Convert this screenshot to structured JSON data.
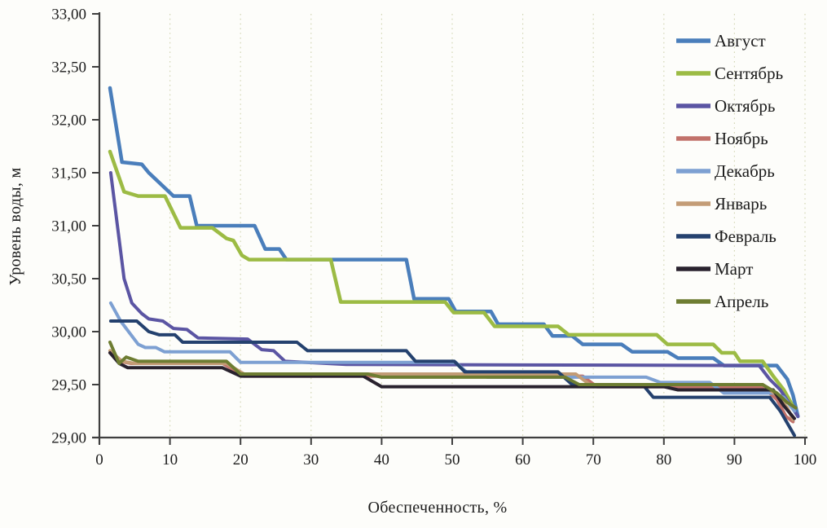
{
  "figure": {
    "background": "#fdfdfa",
    "axis_color": "#3f3f3f",
    "tick_label_color": "#1c1c1c",
    "grid_color": "#cfd2ae"
  },
  "chart_data": {
    "type": "line",
    "title": "",
    "xlabel": "Обеспеченность, %",
    "ylabel": "Уровень воды, м",
    "xlim": [
      0,
      100
    ],
    "ylim": [
      29.0,
      33.0
    ],
    "grid": "vertical-dotted",
    "legend_position": "top-right",
    "x_ticks": [
      {
        "value": 0,
        "label": "0"
      },
      {
        "value": 10,
        "label": "10"
      },
      {
        "value": 20,
        "label": "20"
      },
      {
        "value": 30,
        "label": "30"
      },
      {
        "value": 40,
        "label": "40"
      },
      {
        "value": 50,
        "label": "50"
      },
      {
        "value": 60,
        "label": "60"
      },
      {
        "value": 70,
        "label": "70"
      },
      {
        "value": 80,
        "label": "80"
      },
      {
        "value": 90,
        "label": "90"
      },
      {
        "value": 100,
        "label": "100"
      }
    ],
    "y_ticks": [
      {
        "value": 33.0,
        "label": "33,00"
      },
      {
        "value": 32.5,
        "label": "32,50"
      },
      {
        "value": 32.0,
        "label": "32,00"
      },
      {
        "value": 31.5,
        "label": "31,50"
      },
      {
        "value": 31.0,
        "label": "31,00"
      },
      {
        "value": 30.5,
        "label": "30,50"
      },
      {
        "value": 30.0,
        "label": "30,00"
      },
      {
        "value": 29.5,
        "label": "29,50"
      },
      {
        "value": 29.0,
        "label": "29,00"
      }
    ],
    "series": [
      {
        "name": "Август",
        "slug": "august",
        "color": "#4a7ebb",
        "width": 4.5,
        "points": [
          [
            1.5,
            32.3
          ],
          [
            3.2,
            31.6
          ],
          [
            6.0,
            31.58
          ],
          [
            7.0,
            31.5
          ],
          [
            10.5,
            31.28
          ],
          [
            12.8,
            31.28
          ],
          [
            13.8,
            31.0
          ],
          [
            22.0,
            31.0
          ],
          [
            23.5,
            30.78
          ],
          [
            25.5,
            30.78
          ],
          [
            26.5,
            30.68
          ],
          [
            43.5,
            30.68
          ],
          [
            44.6,
            30.31
          ],
          [
            49.5,
            30.31
          ],
          [
            50.5,
            30.19
          ],
          [
            55.5,
            30.19
          ],
          [
            56.5,
            30.07
          ],
          [
            63.0,
            30.07
          ],
          [
            64.2,
            29.96
          ],
          [
            67.0,
            29.96
          ],
          [
            68.5,
            29.88
          ],
          [
            74.0,
            29.88
          ],
          [
            75.5,
            29.81
          ],
          [
            80.5,
            29.81
          ],
          [
            82.0,
            29.75
          ],
          [
            87.0,
            29.75
          ],
          [
            88.5,
            29.68
          ],
          [
            96.0,
            29.68
          ],
          [
            97.5,
            29.55
          ],
          [
            98.3,
            29.4
          ],
          [
            99.0,
            29.2
          ]
        ]
      },
      {
        "name": "Сентябрь",
        "slug": "september",
        "color": "#9cbb44",
        "width": 4.5,
        "points": [
          [
            1.5,
            31.7
          ],
          [
            3.5,
            31.32
          ],
          [
            5.5,
            31.28
          ],
          [
            9.3,
            31.28
          ],
          [
            11.5,
            30.98
          ],
          [
            16.0,
            30.98
          ],
          [
            18.0,
            30.88
          ],
          [
            19.0,
            30.86
          ],
          [
            20.2,
            30.72
          ],
          [
            21.2,
            30.68
          ],
          [
            32.8,
            30.68
          ],
          [
            34.2,
            30.28
          ],
          [
            49.0,
            30.28
          ],
          [
            50.2,
            30.18
          ],
          [
            54.5,
            30.18
          ],
          [
            56.0,
            30.05
          ],
          [
            65.0,
            30.05
          ],
          [
            66.5,
            29.97
          ],
          [
            79.0,
            29.97
          ],
          [
            80.5,
            29.88
          ],
          [
            87.0,
            29.88
          ],
          [
            88.2,
            29.8
          ],
          [
            90.0,
            29.8
          ],
          [
            90.8,
            29.72
          ],
          [
            94.0,
            29.72
          ],
          [
            95.5,
            29.58
          ],
          [
            97.0,
            29.45
          ],
          [
            98.5,
            29.27
          ]
        ]
      },
      {
        "name": "Октябрь",
        "slug": "october",
        "color": "#5b55a3",
        "width": 4,
        "points": [
          [
            1.6,
            31.5
          ],
          [
            3.5,
            30.5
          ],
          [
            4.6,
            30.27
          ],
          [
            6.0,
            30.17
          ],
          [
            7.0,
            30.12
          ],
          [
            9.0,
            30.1
          ],
          [
            10.5,
            30.03
          ],
          [
            12.4,
            30.02
          ],
          [
            14.0,
            29.94
          ],
          [
            21.0,
            29.93
          ],
          [
            23.0,
            29.83
          ],
          [
            24.7,
            29.82
          ],
          [
            26.3,
            29.72
          ],
          [
            35.0,
            29.69
          ],
          [
            93.5,
            29.68
          ],
          [
            95.0,
            29.55
          ],
          [
            96.5,
            29.45
          ],
          [
            97.5,
            29.35
          ],
          [
            99.0,
            29.2
          ]
        ]
      },
      {
        "name": "Ноябрь",
        "slug": "november",
        "color": "#c2726b",
        "width": 4,
        "points": [
          [
            1.5,
            29.8
          ],
          [
            2.8,
            29.72
          ],
          [
            4.5,
            29.7
          ],
          [
            17.5,
            29.7
          ],
          [
            20.5,
            29.58
          ],
          [
            68.5,
            29.58
          ],
          [
            70.5,
            29.48
          ],
          [
            94.0,
            29.48
          ],
          [
            96.0,
            29.36
          ],
          [
            97.3,
            29.2
          ],
          [
            98.3,
            29.15
          ]
        ]
      },
      {
        "name": "Декабрь",
        "slug": "december",
        "color": "#7da0d2",
        "width": 4,
        "points": [
          [
            1.6,
            30.27
          ],
          [
            3.0,
            30.1
          ],
          [
            5.5,
            29.88
          ],
          [
            6.5,
            29.85
          ],
          [
            8.0,
            29.85
          ],
          [
            9.2,
            29.81
          ],
          [
            18.5,
            29.81
          ],
          [
            20.0,
            29.71
          ],
          [
            50.5,
            29.71
          ],
          [
            52.0,
            29.62
          ],
          [
            55.0,
            29.57
          ],
          [
            77.5,
            29.57
          ],
          [
            79.5,
            29.52
          ],
          [
            86.5,
            29.52
          ],
          [
            88.5,
            29.42
          ],
          [
            95.5,
            29.42
          ],
          [
            97.0,
            29.38
          ],
          [
            98.5,
            29.25
          ]
        ]
      },
      {
        "name": "Январь",
        "slug": "january",
        "color": "#c39c76",
        "width": 4,
        "points": [
          [
            1.5,
            29.82
          ],
          [
            3.2,
            29.72
          ],
          [
            5.0,
            29.7
          ],
          [
            18.0,
            29.7
          ],
          [
            20.5,
            29.6
          ],
          [
            67.5,
            29.6
          ],
          [
            69.5,
            29.5
          ],
          [
            94.0,
            29.5
          ],
          [
            96.0,
            29.4
          ],
          [
            97.5,
            29.28
          ],
          [
            98.3,
            29.17
          ]
        ]
      },
      {
        "name": "Февраль",
        "slug": "february",
        "color": "#24416e",
        "width": 4,
        "points": [
          [
            1.6,
            30.1
          ],
          [
            5.3,
            30.1
          ],
          [
            7.0,
            30.0
          ],
          [
            8.5,
            29.97
          ],
          [
            10.7,
            29.97
          ],
          [
            11.8,
            29.9
          ],
          [
            28.0,
            29.9
          ],
          [
            29.5,
            29.82
          ],
          [
            43.5,
            29.82
          ],
          [
            44.8,
            29.72
          ],
          [
            50.3,
            29.72
          ],
          [
            51.8,
            29.62
          ],
          [
            65.0,
            29.62
          ],
          [
            67.0,
            29.5
          ],
          [
            77.0,
            29.5
          ],
          [
            78.5,
            29.38
          ],
          [
            95.0,
            29.38
          ],
          [
            96.5,
            29.25
          ],
          [
            98.5,
            29.02
          ]
        ]
      },
      {
        "name": "Март",
        "slug": "march",
        "color": "#29222e",
        "width": 4,
        "points": [
          [
            1.5,
            29.8
          ],
          [
            2.8,
            29.7
          ],
          [
            4.0,
            29.66
          ],
          [
            17.4,
            29.66
          ],
          [
            20.0,
            29.58
          ],
          [
            37.4,
            29.58
          ],
          [
            40.0,
            29.48
          ],
          [
            80.0,
            29.48
          ],
          [
            82.0,
            29.45
          ],
          [
            95.5,
            29.45
          ],
          [
            97.0,
            29.3
          ],
          [
            98.5,
            29.18
          ]
        ]
      },
      {
        "name": "Апрель",
        "slug": "april",
        "color": "#6e7d32",
        "width": 4,
        "points": [
          [
            1.5,
            29.9
          ],
          [
            2.8,
            29.7
          ],
          [
            3.8,
            29.76
          ],
          [
            5.5,
            29.72
          ],
          [
            18.0,
            29.72
          ],
          [
            20.0,
            29.6
          ],
          [
            38.0,
            29.6
          ],
          [
            40.0,
            29.57
          ],
          [
            66.0,
            29.57
          ],
          [
            68.0,
            29.5
          ],
          [
            94.0,
            29.5
          ],
          [
            96.0,
            29.42
          ],
          [
            97.5,
            29.33
          ],
          [
            98.7,
            29.28
          ]
        ]
      }
    ]
  }
}
